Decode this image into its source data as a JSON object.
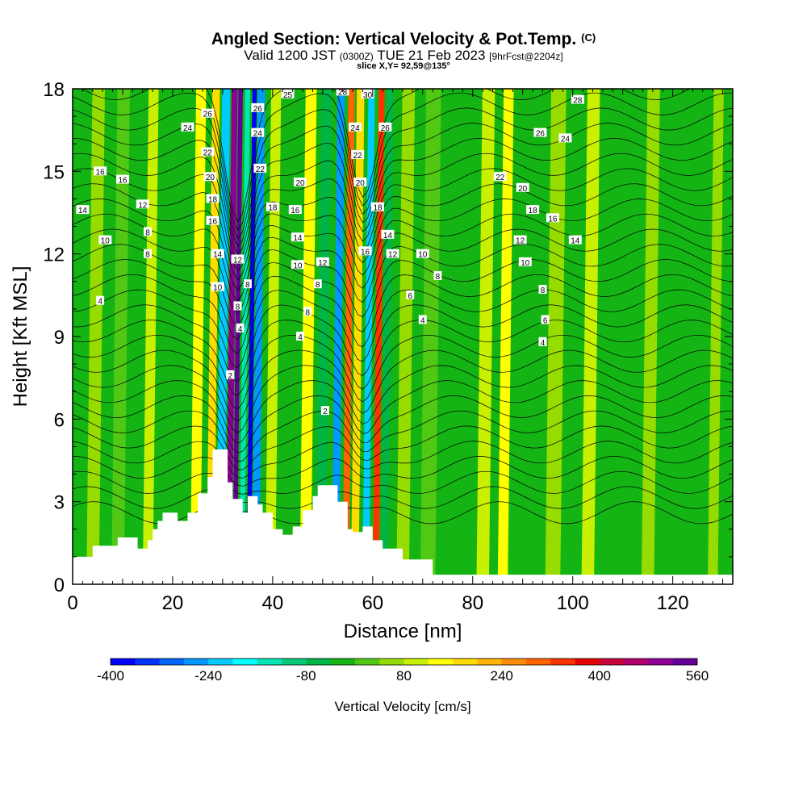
{
  "title": {
    "main": "Angled Section: Vertical Velocity & Pot.Temp.",
    "unit_suffix": "(C)",
    "valid_prefix": "Valid 1200 JST",
    "valid_utc": "(0300Z)",
    "valid_date": "TUE 21 Feb 2023",
    "forecast": "[9hrFcst@2204z]",
    "slice": "slice X,Y= 92,59@135°"
  },
  "chart_data": {
    "type": "heatmap",
    "xlabel": "Distance [nm]",
    "ylabel": "Height [Kft MSL]",
    "xlim": [
      0,
      132
    ],
    "ylim": [
      0,
      18
    ],
    "x_ticks": [
      "0",
      "20",
      "40",
      "60",
      "80",
      "100",
      "120"
    ],
    "y_ticks": [
      "0",
      "3",
      "6",
      "9",
      "12",
      "15",
      "18"
    ],
    "colorbar": {
      "label": "Vertical Velocity [cm/s]",
      "ticks": [
        "-400",
        "-240",
        "-80",
        "80",
        "240",
        "400",
        "560"
      ],
      "min": -400,
      "max": 560,
      "step": 40,
      "colors": [
        "#0000ff",
        "#0033ff",
        "#0066ff",
        "#0099ff",
        "#00ccff",
        "#00ffff",
        "#00e6b4",
        "#00cc78",
        "#00b446",
        "#14b414",
        "#50c814",
        "#96dc00",
        "#c8f000",
        "#ffff00",
        "#ffdc00",
        "#ffb400",
        "#ff8c00",
        "#ff6400",
        "#ff3200",
        "#e60000",
        "#c8003c",
        "#b4006e",
        "#8c0096",
        "#640096"
      ]
    },
    "terrain": [
      [
        0,
        1.0
      ],
      [
        4,
        1.0
      ],
      [
        4,
        1.4
      ],
      [
        9,
        1.4
      ],
      [
        9,
        1.7
      ],
      [
        13,
        1.7
      ],
      [
        13,
        1.3
      ],
      [
        15,
        1.3
      ],
      [
        15,
        1.6
      ],
      [
        16,
        1.6
      ],
      [
        16,
        2.0
      ],
      [
        17,
        2.0
      ],
      [
        17,
        2.3
      ],
      [
        18,
        2.3
      ],
      [
        18,
        2.6
      ],
      [
        21,
        2.6
      ],
      [
        21,
        2.3
      ],
      [
        23,
        2.3
      ],
      [
        23,
        2.6
      ],
      [
        25,
        2.6
      ],
      [
        25,
        3.3
      ],
      [
        27,
        3.3
      ],
      [
        27,
        3.9
      ],
      [
        28,
        3.9
      ],
      [
        28,
        4.9
      ],
      [
        31,
        4.9
      ],
      [
        31,
        3.7
      ],
      [
        32,
        3.7
      ],
      [
        32,
        3.1
      ],
      [
        34,
        3.1
      ],
      [
        34,
        2.6
      ],
      [
        35,
        2.6
      ],
      [
        35,
        3.2
      ],
      [
        37,
        3.2
      ],
      [
        37,
        2.9
      ],
      [
        38,
        2.9
      ],
      [
        38,
        2.6
      ],
      [
        40,
        2.6
      ],
      [
        40,
        2.0
      ],
      [
        42,
        2.0
      ],
      [
        42,
        1.8
      ],
      [
        44,
        1.8
      ],
      [
        44,
        2.1
      ],
      [
        46,
        2.1
      ],
      [
        46,
        2.7
      ],
      [
        48,
        2.7
      ],
      [
        48,
        3.2
      ],
      [
        49,
        3.2
      ],
      [
        49,
        3.6
      ],
      [
        53,
        3.6
      ],
      [
        53,
        3.0
      ],
      [
        55,
        3.0
      ],
      [
        55,
        2.0
      ],
      [
        56,
        2.0
      ],
      [
        56,
        1.9
      ],
      [
        58,
        1.9
      ],
      [
        58,
        2.1
      ],
      [
        60,
        2.1
      ],
      [
        60,
        1.6
      ],
      [
        62,
        1.6
      ],
      [
        62,
        1.3
      ],
      [
        66,
        1.3
      ],
      [
        66,
        0.9
      ],
      [
        72,
        0.9
      ],
      [
        72,
        0.35
      ],
      [
        132,
        0.35
      ]
    ],
    "shading_bands": [
      {
        "x": 4,
        "w": 2.5,
        "v": 60
      },
      {
        "x": 9,
        "w": 2.5,
        "v": 20
      },
      {
        "x": 15,
        "w": 2.0,
        "v": 100
      },
      {
        "x": 20.5,
        "w": 2.2,
        "v": -40
      },
      {
        "x": 24.5,
        "w": 2.0,
        "v": 120
      },
      {
        "x": 27.5,
        "w": 1.5,
        "v": 160
      },
      {
        "x": 29.5,
        "w": 1.6,
        "v": -240
      },
      {
        "x": 31.2,
        "w": 1.2,
        "v": 480
      },
      {
        "x": 32.4,
        "w": 0.9,
        "v": 560
      },
      {
        "x": 33.8,
        "w": 1.0,
        "v": -160
      },
      {
        "x": 35.2,
        "w": 0.9,
        "v": -400
      },
      {
        "x": 36.6,
        "w": 1.4,
        "v": -280
      },
      {
        "x": 39.5,
        "w": 2.0,
        "v": 100
      },
      {
        "x": 43,
        "w": 2.0,
        "v": -40
      },
      {
        "x": 46.5,
        "w": 2.2,
        "v": 140
      },
      {
        "x": 49.6,
        "w": 2.0,
        "v": -80
      },
      {
        "x": 52.5,
        "w": 1.5,
        "v": -280
      },
      {
        "x": 54.6,
        "w": 1.3,
        "v": 280
      },
      {
        "x": 56.4,
        "w": 1.5,
        "v": 180
      },
      {
        "x": 58.6,
        "w": 1.3,
        "v": -240
      },
      {
        "x": 60.6,
        "w": 1.2,
        "v": 320
      },
      {
        "x": 62.3,
        "w": 1.4,
        "v": -80
      },
      {
        "x": 66,
        "w": 2.5,
        "v": 60
      },
      {
        "x": 71,
        "w": 3.0,
        "v": 0
      },
      {
        "x": 77,
        "w": 2.5,
        "v": -40
      },
      {
        "x": 82,
        "w": 2.5,
        "v": 100
      },
      {
        "x": 86,
        "w": 2.0,
        "v": 140
      },
      {
        "x": 90.5,
        "w": 2.5,
        "v": -40
      },
      {
        "x": 96,
        "w": 3.0,
        "v": 40
      },
      {
        "x": 103,
        "w": 2.5,
        "v": 100
      },
      {
        "x": 109,
        "w": 2.5,
        "v": -40
      },
      {
        "x": 115,
        "w": 2.5,
        "v": 60
      },
      {
        "x": 122,
        "w": 2.5,
        "v": -40
      },
      {
        "x": 128,
        "w": 2.0,
        "v": 40
      }
    ],
    "theta_labels": [
      {
        "x": 5.5,
        "y": 10.3,
        "t": "4"
      },
      {
        "x": 2.0,
        "y": 13.6,
        "t": "14"
      },
      {
        "x": 6.5,
        "y": 12.5,
        "t": "10"
      },
      {
        "x": 5.5,
        "y": 15.0,
        "t": "16"
      },
      {
        "x": 10.0,
        "y": 14.7,
        "t": "16"
      },
      {
        "x": 14.0,
        "y": 13.8,
        "t": "12"
      },
      {
        "x": 15.0,
        "y": 12.8,
        "t": "8"
      },
      {
        "x": 15.0,
        "y": 12.0,
        "t": "8"
      },
      {
        "x": 23.0,
        "y": 16.6,
        "t": "24"
      },
      {
        "x": 27.0,
        "y": 17.1,
        "t": "26"
      },
      {
        "x": 27.0,
        "y": 15.7,
        "t": "22"
      },
      {
        "x": 27.5,
        "y": 14.8,
        "t": "20"
      },
      {
        "x": 28.0,
        "y": 14.0,
        "t": "18"
      },
      {
        "x": 28.0,
        "y": 13.2,
        "t": "16"
      },
      {
        "x": 29.0,
        "y": 12.0,
        "t": "14"
      },
      {
        "x": 29.0,
        "y": 10.8,
        "t": "10"
      },
      {
        "x": 33.0,
        "y": 11.8,
        "t": "12"
      },
      {
        "x": 35.0,
        "y": 10.9,
        "t": "8"
      },
      {
        "x": 33.0,
        "y": 10.1,
        "t": "8"
      },
      {
        "x": 33.5,
        "y": 9.3,
        "t": "4"
      },
      {
        "x": 31.5,
        "y": 7.6,
        "t": "2"
      },
      {
        "x": 37.0,
        "y": 17.3,
        "t": "26"
      },
      {
        "x": 37.0,
        "y": 16.4,
        "t": "24"
      },
      {
        "x": 37.5,
        "y": 15.1,
        "t": "22"
      },
      {
        "x": 40.0,
        "y": 13.7,
        "t": "18"
      },
      {
        "x": 43.0,
        "y": 17.8,
        "t": "25"
      },
      {
        "x": 45.5,
        "y": 14.6,
        "t": "20"
      },
      {
        "x": 44.5,
        "y": 13.6,
        "t": "16"
      },
      {
        "x": 45.0,
        "y": 12.6,
        "t": "14"
      },
      {
        "x": 45.0,
        "y": 11.6,
        "t": "10"
      },
      {
        "x": 50.0,
        "y": 11.7,
        "t": "12"
      },
      {
        "x": 49.0,
        "y": 10.9,
        "t": "8"
      },
      {
        "x": 47.0,
        "y": 9.9,
        "t": "8"
      },
      {
        "x": 45.5,
        "y": 9.0,
        "t": "4"
      },
      {
        "x": 54.0,
        "y": 17.9,
        "t": "28"
      },
      {
        "x": 59.0,
        "y": 17.8,
        "t": "30"
      },
      {
        "x": 56.5,
        "y": 16.6,
        "t": "24"
      },
      {
        "x": 57.0,
        "y": 15.6,
        "t": "22"
      },
      {
        "x": 57.5,
        "y": 14.6,
        "t": "20"
      },
      {
        "x": 61.0,
        "y": 13.7,
        "t": "18"
      },
      {
        "x": 58.5,
        "y": 12.1,
        "t": "16"
      },
      {
        "x": 63.0,
        "y": 12.7,
        "t": "14"
      },
      {
        "x": 64.0,
        "y": 12.0,
        "t": "12"
      },
      {
        "x": 62.5,
        "y": 16.6,
        "t": "26"
      },
      {
        "x": 70.0,
        "y": 12.0,
        "t": "10"
      },
      {
        "x": 73.0,
        "y": 11.2,
        "t": "8"
      },
      {
        "x": 67.5,
        "y": 10.5,
        "t": "6"
      },
      {
        "x": 70.0,
        "y": 9.6,
        "t": "4"
      },
      {
        "x": 50.5,
        "y": 6.3,
        "t": "2"
      },
      {
        "x": 101.0,
        "y": 17.6,
        "t": "28"
      },
      {
        "x": 93.5,
        "y": 16.4,
        "t": "26"
      },
      {
        "x": 98.5,
        "y": 16.2,
        "t": "24"
      },
      {
        "x": 85.5,
        "y": 14.8,
        "t": "22"
      },
      {
        "x": 90.0,
        "y": 14.4,
        "t": "20"
      },
      {
        "x": 92.0,
        "y": 13.6,
        "t": "18"
      },
      {
        "x": 96.0,
        "y": 13.3,
        "t": "16"
      },
      {
        "x": 100.5,
        "y": 12.5,
        "t": "14"
      },
      {
        "x": 89.5,
        "y": 12.5,
        "t": "12"
      },
      {
        "x": 90.5,
        "y": 11.7,
        "t": "10"
      },
      {
        "x": 94.0,
        "y": 10.7,
        "t": "8"
      },
      {
        "x": 94.5,
        "y": 9.6,
        "t": "6"
      },
      {
        "x": 94.0,
        "y": 8.8,
        "t": "4"
      }
    ]
  },
  "legend": {
    "colorbar_label": "Vertical Velocity [cm/s]"
  }
}
